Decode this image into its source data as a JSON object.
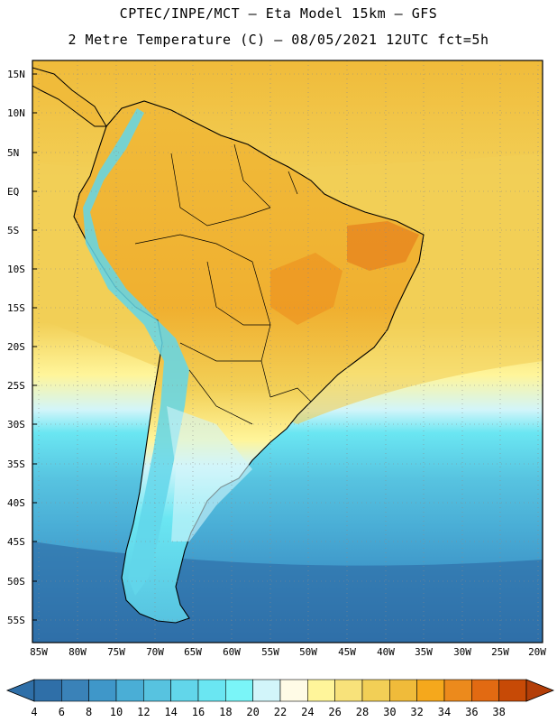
{
  "title": {
    "line1": "CPTEC/INPE/MCT –  Eta Model 15km – GFS",
    "line2": "2 Metre Temperature (C) – 08/05/2021 12UTC fct=5h"
  },
  "map": {
    "lat_labels": [
      "15N",
      "10N",
      "5N",
      "EQ",
      "5S",
      "10S",
      "15S",
      "20S",
      "25S",
      "30S",
      "35S",
      "40S",
      "45S",
      "50S",
      "55S"
    ],
    "lon_labels": [
      "85W",
      "80W",
      "75W",
      "70W",
      "65W",
      "60W",
      "55W",
      "50W",
      "45W",
      "40W",
      "35W",
      "30W",
      "25W",
      "20W"
    ]
  },
  "colorbar": {
    "labels": [
      "4",
      "6",
      "8",
      "10",
      "12",
      "14",
      "16",
      "18",
      "20",
      "22",
      "24",
      "26",
      "28",
      "30",
      "32",
      "34",
      "36",
      "38"
    ],
    "colors": [
      "#2f6fa8",
      "#3a82b8",
      "#3f97c9",
      "#4aaed6",
      "#57c3e0",
      "#62d6ea",
      "#6ae6f2",
      "#7af5f8",
      "#d2f5fa",
      "#fffbe6",
      "#fff59a",
      "#f8e27a",
      "#f2cf56",
      "#f0bb3a",
      "#f5a81c",
      "#ec8a1c",
      "#e26a12",
      "#c74a06"
    ],
    "left_arrow_color": "#2f6fa8",
    "right_arrow_color": "#b33e08"
  },
  "colors": {
    "ocean_north": "#f2cf56",
    "ocean_south": "#3a82b8",
    "land": "#f0bb3a",
    "andes": "#62d6ea"
  }
}
